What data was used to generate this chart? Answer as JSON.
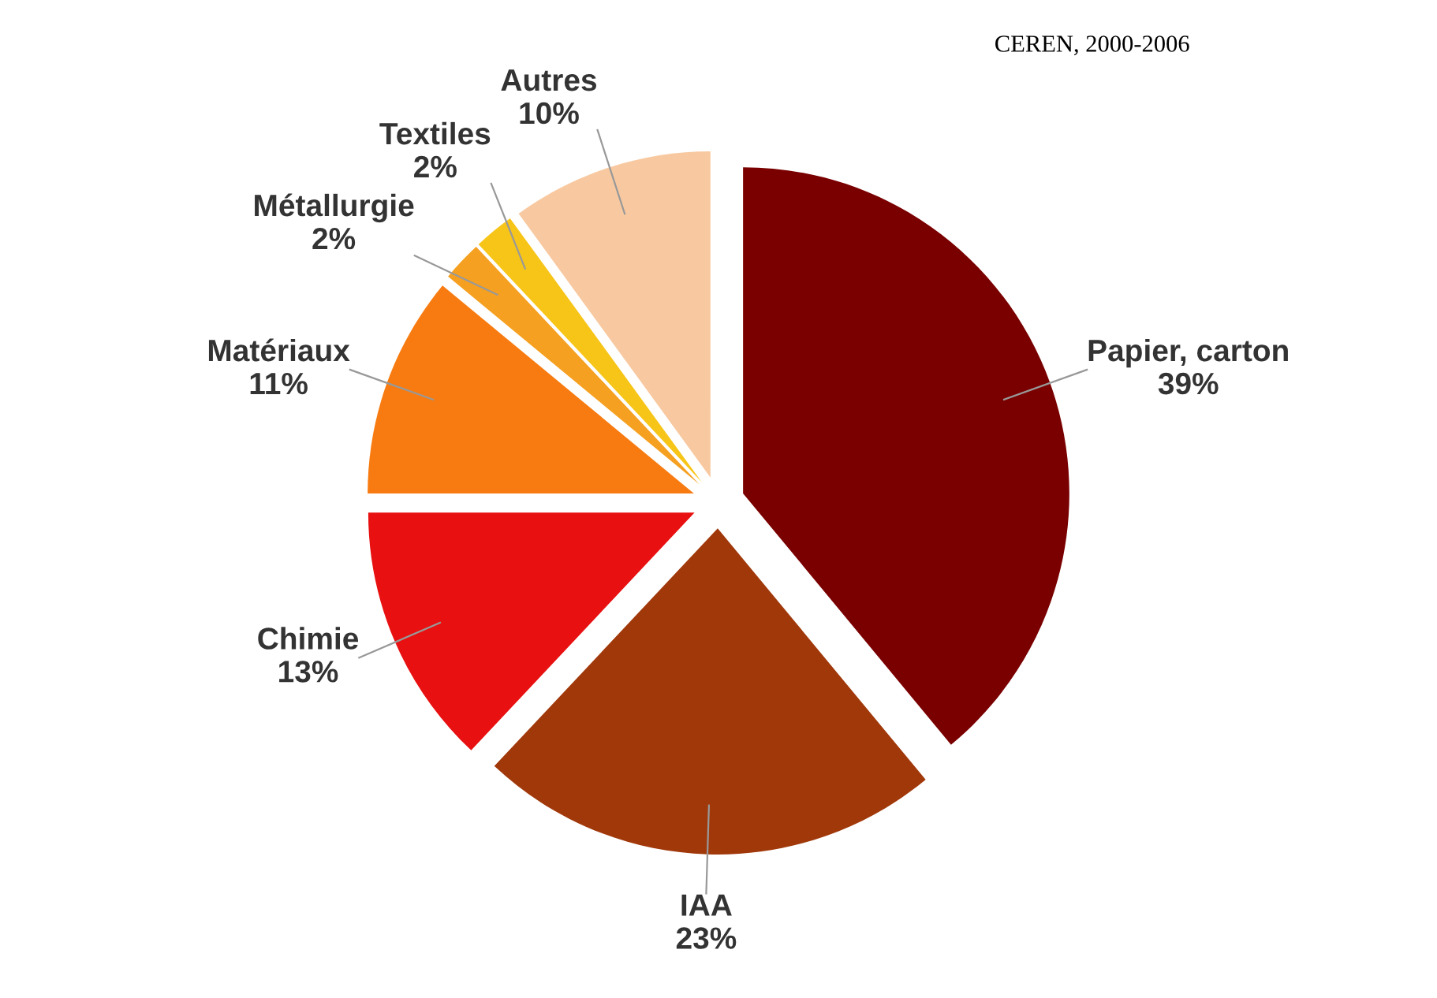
{
  "chart_data": {
    "type": "pie",
    "categories": [
      "Papier, carton",
      "IAA",
      "Chimie",
      "Matériaux",
      "Métallurgie",
      "Textiles",
      "Autres"
    ],
    "values": [
      39,
      23,
      13,
      11,
      2,
      2,
      10
    ],
    "value_labels": [
      "39%",
      "23%",
      "13%",
      "11%",
      "2%",
      "2%",
      "10%"
    ],
    "colors": [
      "#7a0000",
      "#a0380a",
      "#e81010",
      "#f77b10",
      "#f5a020",
      "#f7c518",
      "#f8c9a0"
    ],
    "annotations": [
      "CEREN, 2000-2006"
    ],
    "legend": false
  }
}
